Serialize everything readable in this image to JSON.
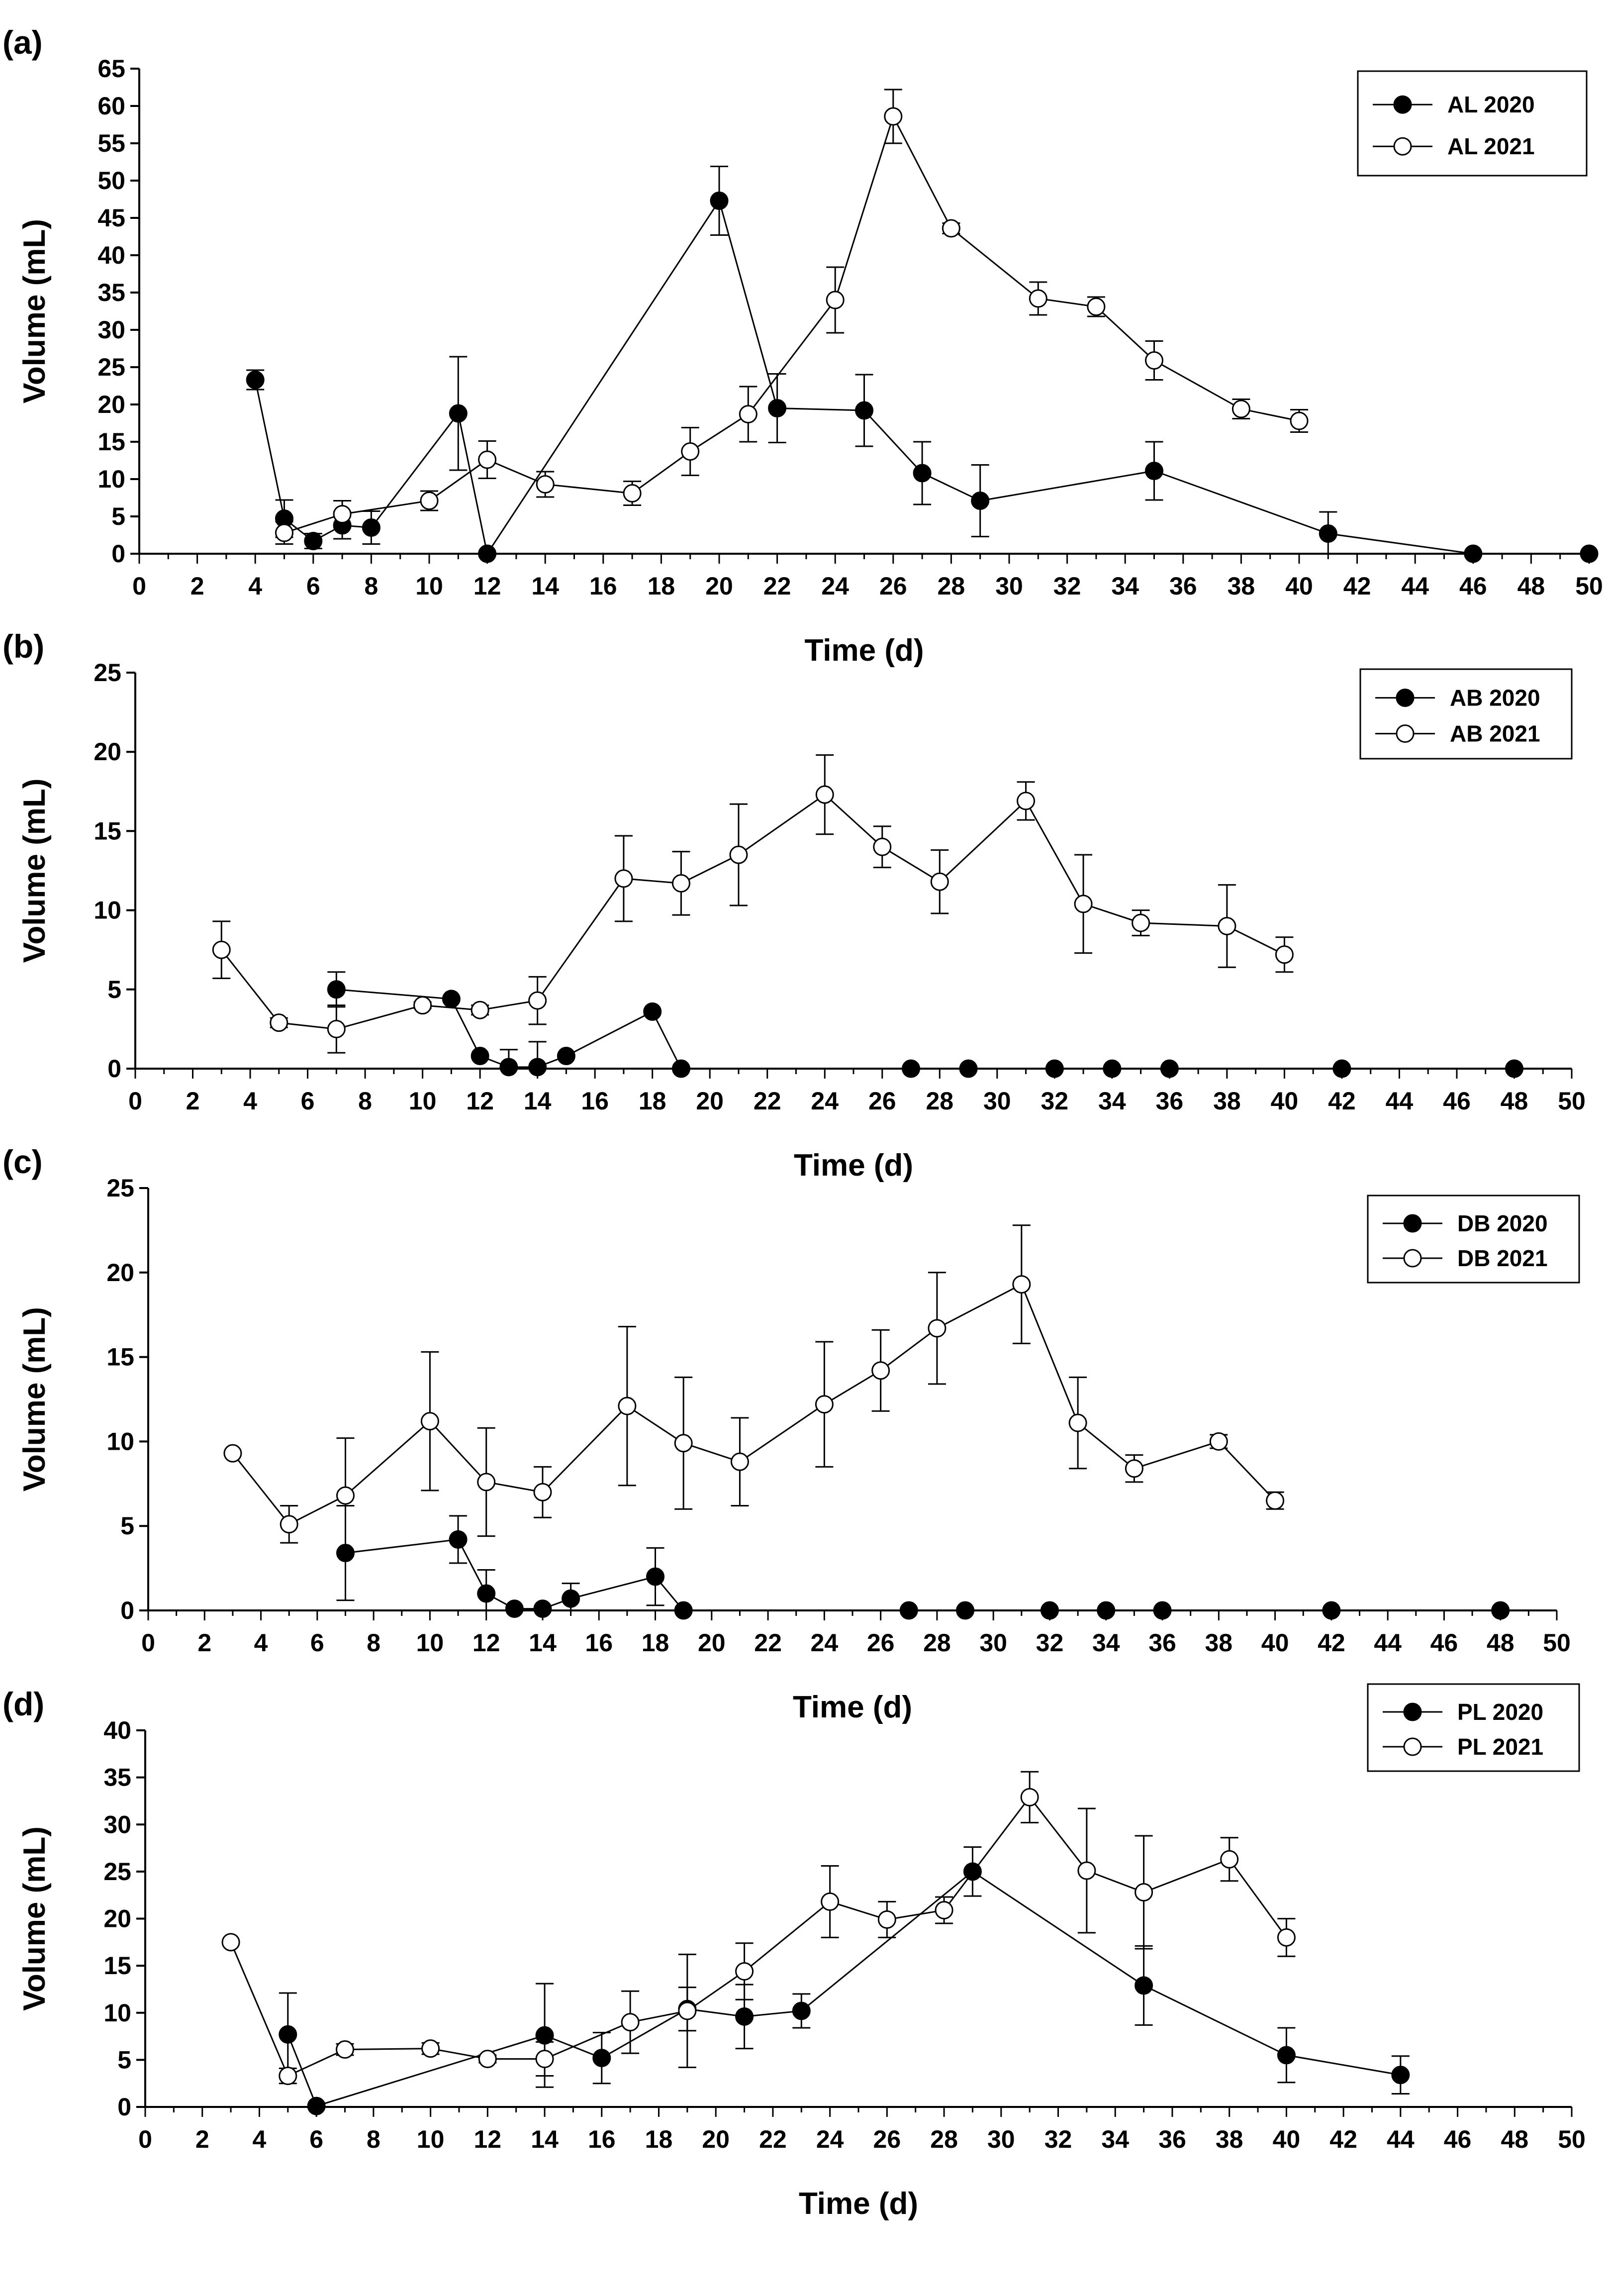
{
  "chart_data": [
    {
      "panel_label": "(a)",
      "type": "line",
      "xlabel": "Time (d)",
      "ylabel": "Volume (mL)",
      "xlim": [
        0,
        50
      ],
      "ylim": [
        0,
        65
      ],
      "xticks": [
        0,
        2,
        4,
        6,
        8,
        10,
        12,
        14,
        16,
        18,
        20,
        22,
        24,
        26,
        28,
        30,
        32,
        34,
        36,
        38,
        40,
        42,
        44,
        46,
        48,
        50
      ],
      "yticks": [
        0,
        5,
        10,
        15,
        20,
        25,
        30,
        35,
        40,
        45,
        50,
        55,
        60,
        65
      ],
      "legend_position": "top-right",
      "series": [
        {
          "name": "AL 2020",
          "marker": "filled",
          "x": [
            4,
            5,
            6,
            7,
            8,
            11,
            12,
            20,
            22,
            25,
            27,
            29,
            35,
            41,
            46,
            50
          ],
          "y": [
            23.3,
            4.7,
            1.7,
            3.8,
            3.5,
            18.8,
            0,
            47.3,
            19.5,
            19.2,
            10.8,
            7.1,
            11.1,
            2.7,
            0,
            0
          ],
          "err": [
            1.3,
            2.5,
            1.0,
            1.8,
            2.2,
            7.6,
            0,
            4.6,
            4.6,
            4.8,
            4.2,
            4.8,
            3.9,
            2.9,
            0,
            0
          ]
        },
        {
          "name": "AL 2021",
          "marker": "open",
          "x": [
            5,
            7,
            10,
            12,
            14,
            17,
            19,
            21,
            24,
            26,
            28,
            31,
            33,
            35,
            38,
            40
          ],
          "y": [
            2.8,
            5.3,
            7.1,
            12.6,
            9.3,
            8.1,
            13.7,
            18.7,
            34.0,
            58.6,
            43.6,
            34.2,
            33.1,
            25.9,
            19.4,
            17.8
          ],
          "err": [
            1.5,
            1.8,
            1.3,
            2.5,
            1.7,
            1.6,
            3.2,
            3.7,
            4.4,
            3.6,
            0.7,
            2.2,
            1.3,
            2.6,
            1.3,
            1.5
          ]
        }
      ]
    },
    {
      "panel_label": "(b)",
      "type": "line",
      "xlabel": "Time (d)",
      "ylabel": "Volume (mL)",
      "xlim": [
        0,
        50
      ],
      "ylim": [
        0,
        25
      ],
      "xticks": [
        0,
        2,
        4,
        6,
        8,
        10,
        12,
        14,
        16,
        18,
        20,
        22,
        24,
        26,
        28,
        30,
        32,
        34,
        36,
        38,
        40,
        42,
        44,
        46,
        48,
        50
      ],
      "yticks": [
        0,
        5,
        10,
        15,
        20,
        25
      ],
      "legend_position": "top-right",
      "series": [
        {
          "name": "AB 2020",
          "marker": "filled",
          "x": [
            7,
            11,
            12,
            13,
            14,
            15,
            18,
            19,
            27,
            29,
            32,
            34,
            36,
            42,
            48
          ],
          "y": [
            5.0,
            4.4,
            0.8,
            0.1,
            0.1,
            0.8,
            3.6,
            0,
            0,
            0,
            0,
            0,
            0,
            0,
            0
          ],
          "err": [
            1.1,
            0,
            0,
            1.1,
            1.6,
            0,
            0,
            0,
            0,
            0,
            0,
            0,
            0,
            0,
            0
          ]
        },
        {
          "name": "AB 2021",
          "marker": "open",
          "x": [
            3,
            5,
            7,
            10,
            12,
            14,
            17,
            19,
            21,
            24,
            26,
            28,
            31,
            33,
            35,
            38,
            40
          ],
          "y": [
            7.5,
            2.9,
            2.5,
            4.0,
            3.7,
            4.3,
            12.0,
            11.7,
            13.5,
            17.3,
            14.0,
            11.8,
            16.9,
            10.4,
            9.2,
            9.0,
            7.2
          ],
          "err": [
            1.8,
            0.3,
            1.5,
            0.2,
            0.3,
            1.5,
            2.7,
            2.0,
            3.2,
            2.5,
            1.3,
            2.0,
            1.2,
            3.1,
            0.8,
            2.6,
            1.1
          ]
        }
      ]
    },
    {
      "panel_label": "(c)",
      "type": "line",
      "xlabel": "Time (d)",
      "ylabel": "Volume (mL)",
      "xlim": [
        0,
        50
      ],
      "ylim": [
        0,
        25
      ],
      "xticks": [
        0,
        2,
        4,
        6,
        8,
        10,
        12,
        14,
        16,
        18,
        20,
        22,
        24,
        26,
        28,
        30,
        32,
        34,
        36,
        38,
        40,
        42,
        44,
        46,
        48,
        50
      ],
      "yticks": [
        0,
        5,
        10,
        15,
        20,
        25
      ],
      "legend_position": "top-right",
      "series": [
        {
          "name": "DB 2020",
          "marker": "filled",
          "x": [
            7,
            11,
            12,
            13,
            14,
            15,
            18,
            19,
            27,
            29,
            32,
            34,
            36,
            42,
            48
          ],
          "y": [
            3.4,
            4.2,
            1.0,
            0.1,
            0.1,
            0.7,
            2.0,
            0,
            0,
            0,
            0,
            0,
            0,
            0,
            0
          ],
          "err": [
            2.8,
            1.4,
            1.4,
            0,
            0,
            0.9,
            1.7,
            0,
            0,
            0,
            0,
            0,
            0,
            0,
            0
          ]
        },
        {
          "name": "DB 2021",
          "marker": "open",
          "x": [
            3,
            5,
            7,
            10,
            12,
            14,
            17,
            19,
            21,
            24,
            26,
            28,
            31,
            33,
            35,
            38,
            40
          ],
          "y": [
            9.3,
            5.1,
            6.8,
            11.2,
            7.6,
            7.0,
            12.1,
            9.9,
            8.8,
            12.2,
            14.2,
            16.7,
            19.3,
            11.1,
            8.4,
            10.0,
            6.5
          ],
          "err": [
            0,
            1.1,
            3.4,
            4.1,
            3.2,
            1.5,
            4.7,
            3.9,
            2.6,
            3.7,
            2.4,
            3.3,
            3.5,
            2.7,
            0.8,
            0.4,
            0.5
          ]
        }
      ]
    },
    {
      "panel_label": "(d)",
      "type": "line",
      "xlabel": "Time (d)",
      "ylabel": "Volume (mL)",
      "xlim": [
        0,
        50
      ],
      "ylim": [
        0,
        40
      ],
      "xticks": [
        0,
        2,
        4,
        6,
        8,
        10,
        12,
        14,
        16,
        18,
        20,
        22,
        24,
        26,
        28,
        30,
        32,
        34,
        36,
        38,
        40,
        42,
        44,
        46,
        48,
        50
      ],
      "yticks": [
        0,
        5,
        10,
        15,
        20,
        25,
        30,
        35,
        40
      ],
      "legend_position": "top-right",
      "series": [
        {
          "name": "PL 2020",
          "marker": "filled",
          "x": [
            5,
            6,
            14,
            16,
            19,
            21,
            23,
            29,
            35,
            40,
            44
          ],
          "y": [
            7.7,
            0.1,
            7.6,
            5.2,
            10.4,
            9.6,
            10.2,
            25.0,
            12.9,
            5.5,
            3.4
          ],
          "err": [
            4.4,
            0,
            5.5,
            2.7,
            2.3,
            3.4,
            1.8,
            2.6,
            4.2,
            2.9,
            2.0
          ]
        },
        {
          "name": "PL 2021",
          "marker": "open",
          "x": [
            3,
            5,
            7,
            10,
            12,
            14,
            17,
            19,
            21,
            24,
            26,
            28,
            31,
            33,
            35,
            38,
            40
          ],
          "y": [
            17.5,
            3.3,
            6.1,
            6.2,
            5.1,
            5.1,
            9.0,
            10.2,
            14.4,
            21.8,
            19.9,
            20.9,
            32.9,
            25.1,
            22.8,
            26.3,
            18.0
          ],
          "err": [
            0,
            0.8,
            0.6,
            0.6,
            0.4,
            1.8,
            3.3,
            6.0,
            3.0,
            3.8,
            1.9,
            1.4,
            2.7,
            6.6,
            6.0,
            2.3,
            2.0
          ]
        }
      ]
    }
  ]
}
